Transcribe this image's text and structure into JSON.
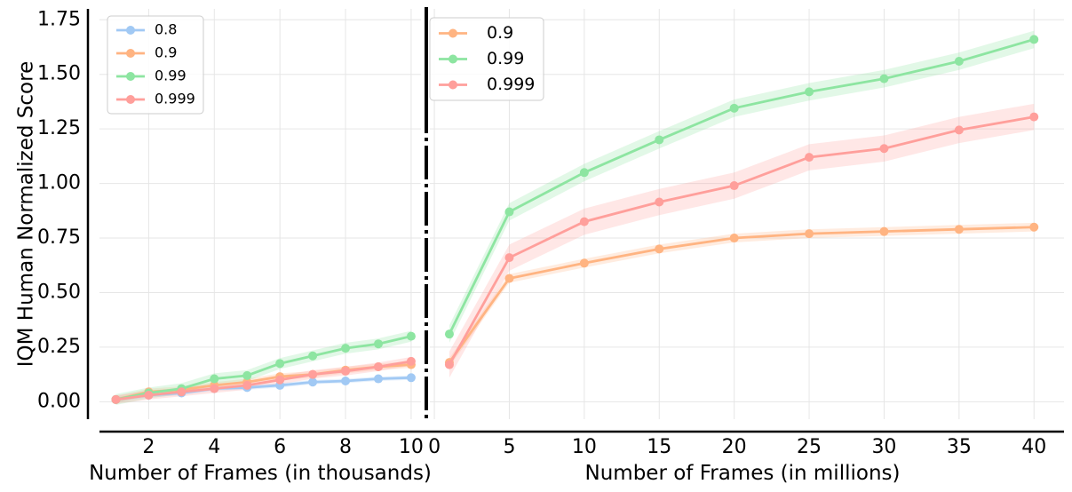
{
  "chart_data": [
    {
      "type": "line",
      "panel": "left",
      "xlabel": "Number of Frames (in thousands)",
      "ylabel": "IQM Human Normalized Score",
      "xlim": [
        0.5,
        10.3
      ],
      "ylim": [
        -0.08,
        1.8
      ],
      "xticks": [
        2,
        4,
        6,
        8,
        10
      ],
      "yticks": [
        0.0,
        0.25,
        0.5,
        0.75,
        1.0,
        1.25,
        1.5,
        1.75
      ],
      "ytick_labels": [
        "0.00",
        "0.25",
        "0.50",
        "0.75",
        "1.00",
        "1.25",
        "1.50",
        "1.75"
      ],
      "grid": true,
      "legend_placement": "top-left",
      "x": [
        1,
        2,
        3,
        4,
        5,
        6,
        7,
        8,
        9,
        10
      ],
      "series": [
        {
          "name": "0.8",
          "color": "#a1c9f4",
          "values": [
            0.01,
            0.03,
            0.04,
            0.06,
            0.065,
            0.075,
            0.09,
            0.095,
            0.105,
            0.11
          ],
          "band": 0.01
        },
        {
          "name": "0.9",
          "color": "#ffb482",
          "values": [
            0.01,
            0.045,
            0.055,
            0.075,
            0.09,
            0.115,
            0.125,
            0.145,
            0.16,
            0.17
          ],
          "band": 0.015
        },
        {
          "name": "0.99",
          "color": "#8de5a1",
          "values": [
            0.01,
            0.04,
            0.06,
            0.105,
            0.12,
            0.175,
            0.21,
            0.245,
            0.265,
            0.3
          ],
          "band": 0.025
        },
        {
          "name": "0.999",
          "color": "#ff9f9b",
          "values": [
            0.01,
            0.03,
            0.045,
            0.06,
            0.075,
            0.1,
            0.125,
            0.14,
            0.16,
            0.185
          ],
          "band": 0.02
        }
      ]
    },
    {
      "type": "line",
      "panel": "right",
      "xlabel": "Number of Frames (in millions)",
      "ylabel": "",
      "xlim": [
        -0.3,
        42
      ],
      "ylim": [
        -0.08,
        1.8
      ],
      "xticks": [
        0,
        5,
        10,
        15,
        20,
        25,
        30,
        35,
        40
      ],
      "grid": true,
      "legend_placement": "top-left",
      "x": [
        1,
        5,
        10,
        15,
        20,
        25,
        30,
        35,
        40
      ],
      "series": [
        {
          "name": "0.9",
          "color": "#ffb482",
          "values": [
            0.18,
            0.565,
            0.635,
            0.7,
            0.75,
            0.77,
            0.78,
            0.79,
            0.8
          ],
          "band": 0.02
        },
        {
          "name": "0.99",
          "color": "#8de5a1",
          "values": [
            0.31,
            0.87,
            1.05,
            1.2,
            1.345,
            1.42,
            1.48,
            1.56,
            1.66
          ],
          "band": 0.04
        },
        {
          "name": "0.999",
          "color": "#ff9f9b",
          "values": [
            0.17,
            0.66,
            0.825,
            0.915,
            0.99,
            1.12,
            1.16,
            1.245,
            1.305
          ],
          "band": 0.06
        }
      ]
    }
  ]
}
